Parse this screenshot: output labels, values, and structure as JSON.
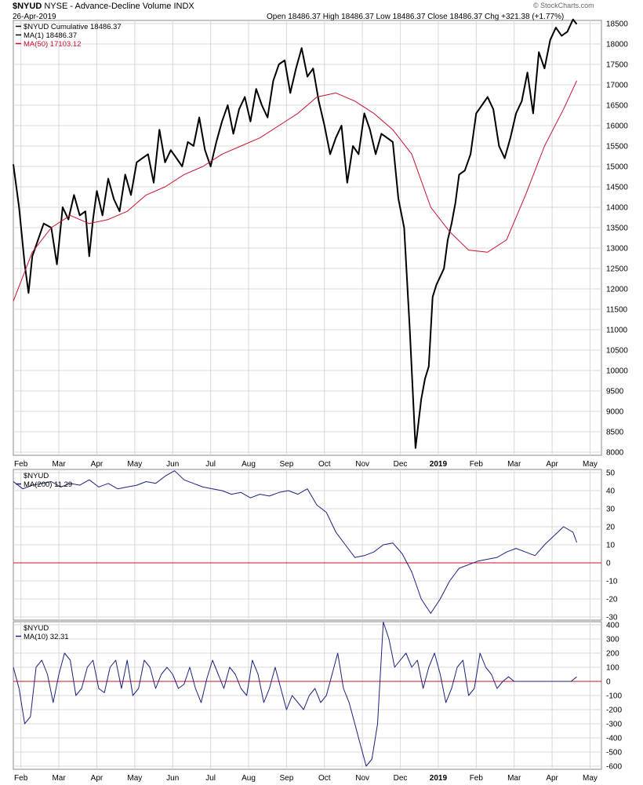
{
  "header": {
    "symbol": "$NYUD",
    "description": "NYSE - Advance-Decline Volume INDX",
    "date": "26-Apr-2019",
    "ohlc_text": "Open 18486.37  High 18486.37  Low 18486.37  Close 18486.37  Chg +321.38 (+1.77%)",
    "watermark": "© StockCharts.com"
  },
  "colors": {
    "black": "#000000",
    "red": "#c8102e",
    "navy": "#1a237e",
    "grid": "#d8d8d8",
    "frame": "#888888"
  },
  "chart_data": [
    {
      "type": "line",
      "legend": [
        "$NYUD Cumulative 18486.37",
        "MA(1) 18486.37",
        "MA(50) 17103.12"
      ],
      "legend_placement": "top-left",
      "ylim": [
        8000,
        18500
      ],
      "y_ticks": [
        8000,
        8500,
        9000,
        9500,
        10000,
        10500,
        11000,
        11500,
        12000,
        12500,
        13000,
        13500,
        14000,
        14500,
        15000,
        15500,
        16000,
        16500,
        17000,
        17500,
        18000,
        18500
      ],
      "x_month_ticks": [
        "Feb",
        "Mar",
        "Apr",
        "May",
        "Jun",
        "Jul",
        "Aug",
        "Sep",
        "Oct",
        "Nov",
        "Dec",
        "2019",
        "Feb",
        "Mar",
        "Apr",
        "May"
      ],
      "x_tick_pos": [
        0.4,
        2.4,
        4.4,
        6.4,
        8.4,
        10.4,
        12.4,
        14.4,
        16.4,
        18.4,
        20.4,
        22.4,
        24.4,
        26.4,
        28.4,
        30.4
      ],
      "grid": true,
      "series": [
        {
          "name": "MA(1) 18486.37",
          "color": "#000000",
          "x": [
            0,
            0.3,
            0.6,
            0.8,
            1,
            1.3,
            1.6,
            2,
            2.3,
            2.6,
            2.9,
            3.2,
            3.5,
            3.8,
            4,
            4.2,
            4.4,
            4.7,
            5,
            5.3,
            5.6,
            5.9,
            6.2,
            6.5,
            6.8,
            7.1,
            7.4,
            7.7,
            8,
            8.3,
            8.6,
            8.9,
            9.2,
            9.5,
            9.8,
            10.1,
            10.4,
            10.7,
            11,
            11.3,
            11.6,
            11.9,
            12.2,
            12.5,
            12.8,
            13.1,
            13.4,
            13.7,
            14,
            14.3,
            14.6,
            14.9,
            15.2,
            15.5,
            15.8,
            16.1,
            16.4,
            16.7,
            17,
            17.3,
            17.6,
            17.9,
            18.2,
            18.5,
            18.8,
            19.1,
            19.4,
            19.7,
            20,
            20.3,
            20.6,
            20.9,
            21.2,
            21.5,
            21.7,
            21.9,
            22.1,
            22.3,
            22.5,
            22.7,
            22.9,
            23.1,
            23.3,
            23.5,
            23.8,
            24.1,
            24.4,
            24.7,
            25,
            25.3,
            25.6,
            25.9,
            26.2,
            26.5,
            26.8,
            27.1,
            27.4,
            27.7,
            28,
            28.3,
            28.6,
            28.9,
            29.2,
            29.5,
            29.7
          ],
          "y": [
            15050,
            14000,
            12600,
            11900,
            12800,
            13200,
            13600,
            13500,
            12600,
            14000,
            13700,
            14300,
            13800,
            13900,
            12800,
            13700,
            14400,
            13800,
            14700,
            14200,
            13900,
            14800,
            14300,
            15100,
            15200,
            15300,
            14600,
            15900,
            15100,
            15400,
            15200,
            15000,
            15600,
            15500,
            16200,
            15400,
            15000,
            15600,
            16100,
            16500,
            15800,
            16400,
            16700,
            16100,
            16900,
            16500,
            16200,
            17100,
            17500,
            17600,
            16800,
            17400,
            17900,
            17200,
            17400,
            16600,
            16000,
            15300,
            15700,
            16000,
            14600,
            15500,
            15300,
            16300,
            15900,
            15300,
            15800,
            15700,
            15600,
            14200,
            13500,
            11000,
            8100,
            9300,
            9800,
            10100,
            11800,
            12100,
            12300,
            12500,
            13200,
            13600,
            14100,
            14800,
            14900,
            15300,
            16300,
            16500,
            16700,
            16400,
            15500,
            15200,
            15700,
            16300,
            16600,
            17300,
            16300,
            17800,
            17400,
            18100,
            18400,
            18200,
            18300,
            18600,
            18486
          ]
        },
        {
          "name": "MA(50) 17103.12",
          "color": "#c8102e",
          "x": [
            0,
            1,
            2,
            3,
            4,
            5,
            6,
            7,
            8,
            9,
            10,
            11,
            12,
            13,
            14,
            15,
            16,
            17,
            18,
            19,
            20,
            21,
            22,
            23,
            24,
            25,
            26,
            27,
            28,
            29,
            29.7
          ],
          "y": [
            11700,
            12900,
            13500,
            13800,
            13600,
            13700,
            13900,
            14300,
            14500,
            14800,
            15000,
            15300,
            15500,
            15700,
            16000,
            16300,
            16700,
            16800,
            16600,
            16300,
            15900,
            15300,
            14000,
            13400,
            12950,
            12900,
            13200,
            14300,
            15500,
            16400,
            17100
          ]
        }
      ]
    },
    {
      "type": "line",
      "legend": [
        "$NYUD",
        "MA(200) 11.29"
      ],
      "legend_placement": "top-left",
      "ylim": [
        -30,
        50
      ],
      "y_ticks": [
        -30,
        -20,
        -10,
        0,
        10,
        20,
        30,
        40,
        50
      ],
      "zero_line": true,
      "grid": true,
      "series": [
        {
          "name": "MA(200) 11.29",
          "color": "#1a237e",
          "x": [
            0,
            0.5,
            1,
            1.5,
            2,
            2.5,
            3,
            3.5,
            4,
            4.5,
            5,
            5.5,
            6,
            6.5,
            7,
            7.5,
            8,
            8.5,
            9,
            9.5,
            10,
            10.5,
            11,
            11.5,
            12,
            12.5,
            13,
            13.5,
            14,
            14.5,
            15,
            15.5,
            16,
            16.5,
            17,
            17.5,
            18,
            18.5,
            19,
            19.5,
            20,
            20.5,
            21,
            21.5,
            22,
            22.5,
            23,
            23.5,
            24,
            24.5,
            25,
            25.5,
            26,
            26.5,
            27,
            27.5,
            28,
            28.5,
            29,
            29.5,
            29.7
          ],
          "y": [
            45,
            41,
            43,
            44,
            45,
            42,
            44,
            43,
            46,
            42,
            44,
            41,
            42,
            43,
            45,
            44,
            48,
            51,
            46,
            44,
            42,
            41,
            40,
            38,
            39,
            36,
            38,
            37,
            39,
            40,
            38,
            41,
            32,
            28,
            17,
            10,
            3,
            4,
            6,
            10,
            11,
            5,
            -5,
            -20,
            -28,
            -20,
            -10,
            -3,
            -1,
            1,
            2,
            3,
            6,
            8,
            6,
            4,
            10,
            15,
            20,
            17,
            11.29
          ]
        }
      ]
    },
    {
      "type": "line",
      "legend": [
        "$NYUD",
        "MA(10) 32.31"
      ],
      "legend_placement": "top-left",
      "ylim": [
        -600,
        400
      ],
      "y_ticks": [
        -600,
        -500,
        -400,
        -300,
        -200,
        -100,
        0,
        100,
        200,
        300,
        400
      ],
      "zero_line": true,
      "grid": true,
      "series": [
        {
          "name": "MA(10) 32.31",
          "color": "#1a237e",
          "x": [
            0,
            0.3,
            0.6,
            0.9,
            1.2,
            1.5,
            1.8,
            2.1,
            2.4,
            2.7,
            3,
            3.3,
            3.6,
            3.9,
            4.2,
            4.5,
            4.8,
            5.1,
            5.4,
            5.7,
            6,
            6.3,
            6.6,
            6.9,
            7.2,
            7.5,
            7.8,
            8.1,
            8.4,
            8.7,
            9,
            9.3,
            9.6,
            9.9,
            10.2,
            10.5,
            10.8,
            11.1,
            11.4,
            11.7,
            12,
            12.3,
            12.6,
            12.9,
            13.2,
            13.5,
            13.8,
            14.1,
            14.4,
            14.7,
            15,
            15.3,
            15.6,
            15.9,
            16.2,
            16.5,
            16.8,
            17.1,
            17.4,
            17.7,
            18,
            18.3,
            18.6,
            18.9,
            19.2,
            19.5,
            19.8,
            20.1,
            20.4,
            20.7,
            21,
            21.3,
            21.6,
            21.9,
            22.2,
            22.5,
            22.8,
            23.1,
            23.4,
            23.7,
            24,
            24.3,
            24.6,
            24.9,
            25.2,
            25.5,
            25.8,
            26.1,
            26.4,
            26.7,
            27,
            27.3,
            27.6,
            27.9,
            28.2,
            28.5,
            28.8,
            29.1,
            29.4,
            29.7
          ],
          "y": [
            100,
            -50,
            -300,
            -250,
            100,
            150,
            50,
            -150,
            50,
            200,
            150,
            -100,
            -50,
            100,
            150,
            -50,
            -80,
            100,
            150,
            -50,
            150,
            -100,
            -50,
            150,
            100,
            -50,
            50,
            100,
            50,
            -50,
            -20,
            100,
            -50,
            -150,
            20,
            150,
            50,
            -50,
            100,
            50,
            -50,
            -100,
            150,
            50,
            -150,
            -50,
            100,
            -50,
            -200,
            -100,
            -150,
            -200,
            -100,
            -50,
            -150,
            -100,
            50,
            200,
            -50,
            -150,
            -300,
            -450,
            -600,
            -550,
            -300,
            420,
            300,
            100,
            150,
            200,
            100,
            150,
            -50,
            100,
            200,
            50,
            -150,
            -50,
            100,
            150,
            -100,
            -50,
            200,
            100,
            50,
            -50,
            0,
            32.31,
            0,
            0,
            0,
            0,
            0,
            0,
            0,
            0,
            0,
            0,
            0,
            32.31
          ]
        }
      ]
    }
  ]
}
